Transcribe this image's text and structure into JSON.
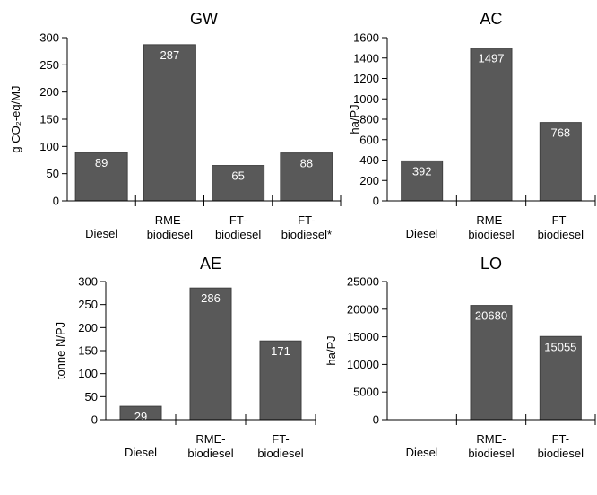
{
  "chart_data": [
    {
      "type": "bar",
      "title": "GW",
      "ylabel": "g CO₂-eq/MJ",
      "categories": [
        [
          "Diesel"
        ],
        [
          "RME-",
          "biodiesel"
        ],
        [
          "FT-",
          "biodiesel"
        ],
        [
          "FT-",
          "biodiesel*"
        ]
      ],
      "values": [
        89,
        287,
        65,
        88
      ],
      "data_labels": [
        "89",
        "287",
        "65",
        "88"
      ],
      "ylim": [
        0,
        300
      ],
      "yticks": [
        0,
        50,
        100,
        150,
        200,
        250,
        300
      ],
      "colors": {
        "bar": "#595959"
      }
    },
    {
      "type": "bar",
      "title": "AC",
      "ylabel": "ha/PJ",
      "categories": [
        [
          "Diesel"
        ],
        [
          "RME-",
          "biodiesel"
        ],
        [
          "FT-",
          "biodiesel"
        ]
      ],
      "values": [
        392,
        1497,
        768
      ],
      "data_labels": [
        "392",
        "1497",
        "768"
      ],
      "ylim": [
        0,
        1600
      ],
      "yticks": [
        0,
        200,
        400,
        600,
        800,
        1000,
        1200,
        1400,
        1600
      ],
      "colors": {
        "bar": "#595959"
      }
    },
    {
      "type": "bar",
      "title": "AE",
      "ylabel": "tonne N/PJ",
      "categories": [
        [
          "Diesel"
        ],
        [
          "RME-",
          "biodiesel"
        ],
        [
          "FT-",
          "biodiesel"
        ]
      ],
      "values": [
        29,
        286,
        171
      ],
      "data_labels": [
        "29",
        "286",
        "171"
      ],
      "ylim": [
        0,
        300
      ],
      "yticks": [
        0,
        50,
        100,
        150,
        200,
        250,
        300
      ],
      "colors": {
        "bar": "#595959"
      }
    },
    {
      "type": "bar",
      "title": "LO",
      "ylabel": "ha/PJ",
      "categories": [
        [
          "Diesel"
        ],
        [
          "RME-",
          "biodiesel"
        ],
        [
          "FT-",
          "biodiesel"
        ]
      ],
      "values": [
        0,
        20680,
        15055
      ],
      "data_labels": [
        "",
        "20680",
        "15055"
      ],
      "ylim": [
        0,
        25000
      ],
      "yticks": [
        0,
        5000,
        10000,
        15000,
        20000,
        25000
      ],
      "colors": {
        "bar": "#595959"
      }
    }
  ]
}
